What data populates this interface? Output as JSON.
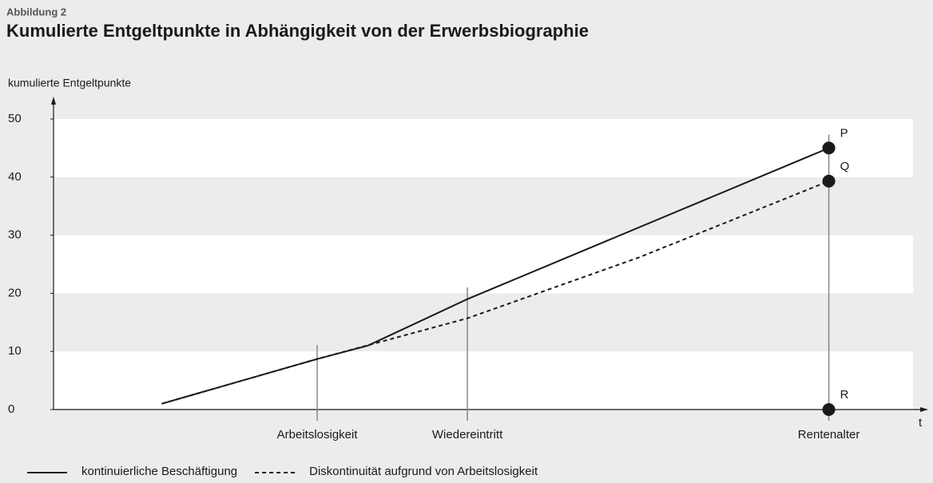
{
  "chart_data": {
    "type": "line",
    "supertitle": "Abbildung 2",
    "title": "Kumulierte Entgeltpunkte in Abhängigkeit von der Erwerbsbiographie",
    "y_label": "kumulierte Entgeltpunkte",
    "x_label": "t",
    "xlim": [
      0,
      100
    ],
    "ylim": [
      0,
      50
    ],
    "yticks": [
      0,
      10,
      20,
      30,
      40,
      50
    ],
    "series": [
      {
        "name": "kontinuierliche Beschäftigung",
        "color": "#1a1a1a",
        "dash": "solid",
        "x": [
          12.4,
          30.2,
          36.0,
          47.4,
          88.8
        ],
        "values": [
          1,
          8.7,
          11.0,
          19,
          45
        ]
      },
      {
        "name": "Diskontinuität aufgrund von Arbeitslosigkeit",
        "color": "#1a1a1a",
        "dash": "dashed",
        "x": [
          12.4,
          30.2,
          47.4,
          67.1,
          88.8
        ],
        "values": [
          1,
          8.7,
          15.7,
          26.2,
          39.3
        ]
      }
    ],
    "markers": [
      {
        "label": "Arbeitslosigkeit",
        "x": 30.2,
        "top": 11.1
      },
      {
        "label": "Wiedereintritt",
        "x": 47.4,
        "top": 21
      },
      {
        "label": "Rentenalter",
        "x": 88.8,
        "top": 47.3
      }
    ],
    "points": [
      {
        "label": "P",
        "x": 88.8,
        "y": 45
      },
      {
        "label": "Q",
        "x": 88.8,
        "y": 39.3
      },
      {
        "label": "R",
        "x": 88.8,
        "y": 0
      }
    ]
  }
}
